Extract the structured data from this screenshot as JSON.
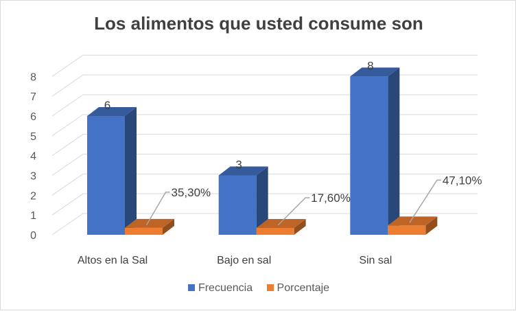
{
  "chart_data": {
    "type": "bar",
    "title": "Los alimentos que usted consume son",
    "categories": [
      "Altos en la Sal",
      "Bajo en sal",
      "Sin sal"
    ],
    "series": [
      {
        "name": "Frecuencia",
        "values": [
          6,
          3,
          8
        ],
        "labels": [
          "6",
          "3",
          "8"
        ],
        "color": "#4472C4"
      },
      {
        "name": "Porcentaje",
        "values": [
          0.353,
          0.176,
          0.471
        ],
        "labels": [
          "35,30%",
          "17,60%",
          "47,10%"
        ],
        "color": "#ED7D31"
      }
    ],
    "yticks": [
      "0",
      "1",
      "2",
      "3",
      "4",
      "5",
      "6",
      "7",
      "8"
    ],
    "ylim": [
      0,
      8
    ],
    "grid": true,
    "legend_position": "bottom",
    "style": "3d-column"
  }
}
